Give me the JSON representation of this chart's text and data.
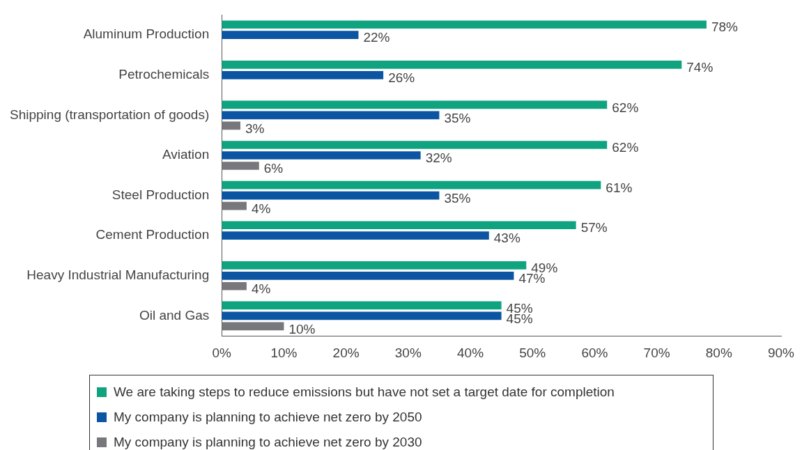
{
  "chart_data": {
    "type": "bar",
    "orientation": "horizontal",
    "categories": [
      "Aluminum Production",
      "Petrochemicals",
      "Shipping (transportation of goods)",
      "Aviation",
      "Steel Production",
      "Cement Production",
      "Heavy Industrial Manufacturing",
      "Oil and Gas"
    ],
    "series": [
      {
        "name": "We are taking steps to reduce emissions but have not set a target date for completion",
        "color": "#10a37f",
        "values": [
          78,
          74,
          62,
          62,
          61,
          57,
          49,
          45
        ],
        "value_labels": [
          "78%",
          "74%",
          "62%",
          "62%",
          "61%",
          "57%",
          "49%",
          "45%"
        ]
      },
      {
        "name": "My company is planning to achieve net zero by 2050",
        "color": "#0b55a3",
        "values": [
          22,
          26,
          35,
          32,
          35,
          43,
          47,
          45
        ],
        "value_labels": [
          "22%",
          "26%",
          "35%",
          "32%",
          "35%",
          "43%",
          "47%",
          "45%"
        ]
      },
      {
        "name": "My company is planning to achieve net zero by 2030",
        "color": "#77777c",
        "values": [
          null,
          null,
          3,
          6,
          4,
          null,
          4,
          10
        ],
        "value_labels": [
          null,
          null,
          "3%",
          "6%",
          "4%",
          null,
          "4%",
          "10%"
        ]
      }
    ],
    "xlim": [
      0,
      90
    ],
    "xticks": [
      {
        "value": 0,
        "label": "0%"
      },
      {
        "value": 10,
        "label": "10%"
      },
      {
        "value": 20,
        "label": "20%"
      },
      {
        "value": 30,
        "label": "30%"
      },
      {
        "value": 40,
        "label": "40%"
      },
      {
        "value": 50,
        "label": "50%"
      },
      {
        "value": 60,
        "label": "60%"
      },
      {
        "value": 70,
        "label": "70%"
      },
      {
        "value": 80,
        "label": "80%"
      },
      {
        "value": 90,
        "label": "90%"
      }
    ],
    "grid": false,
    "legend": "bottom"
  }
}
